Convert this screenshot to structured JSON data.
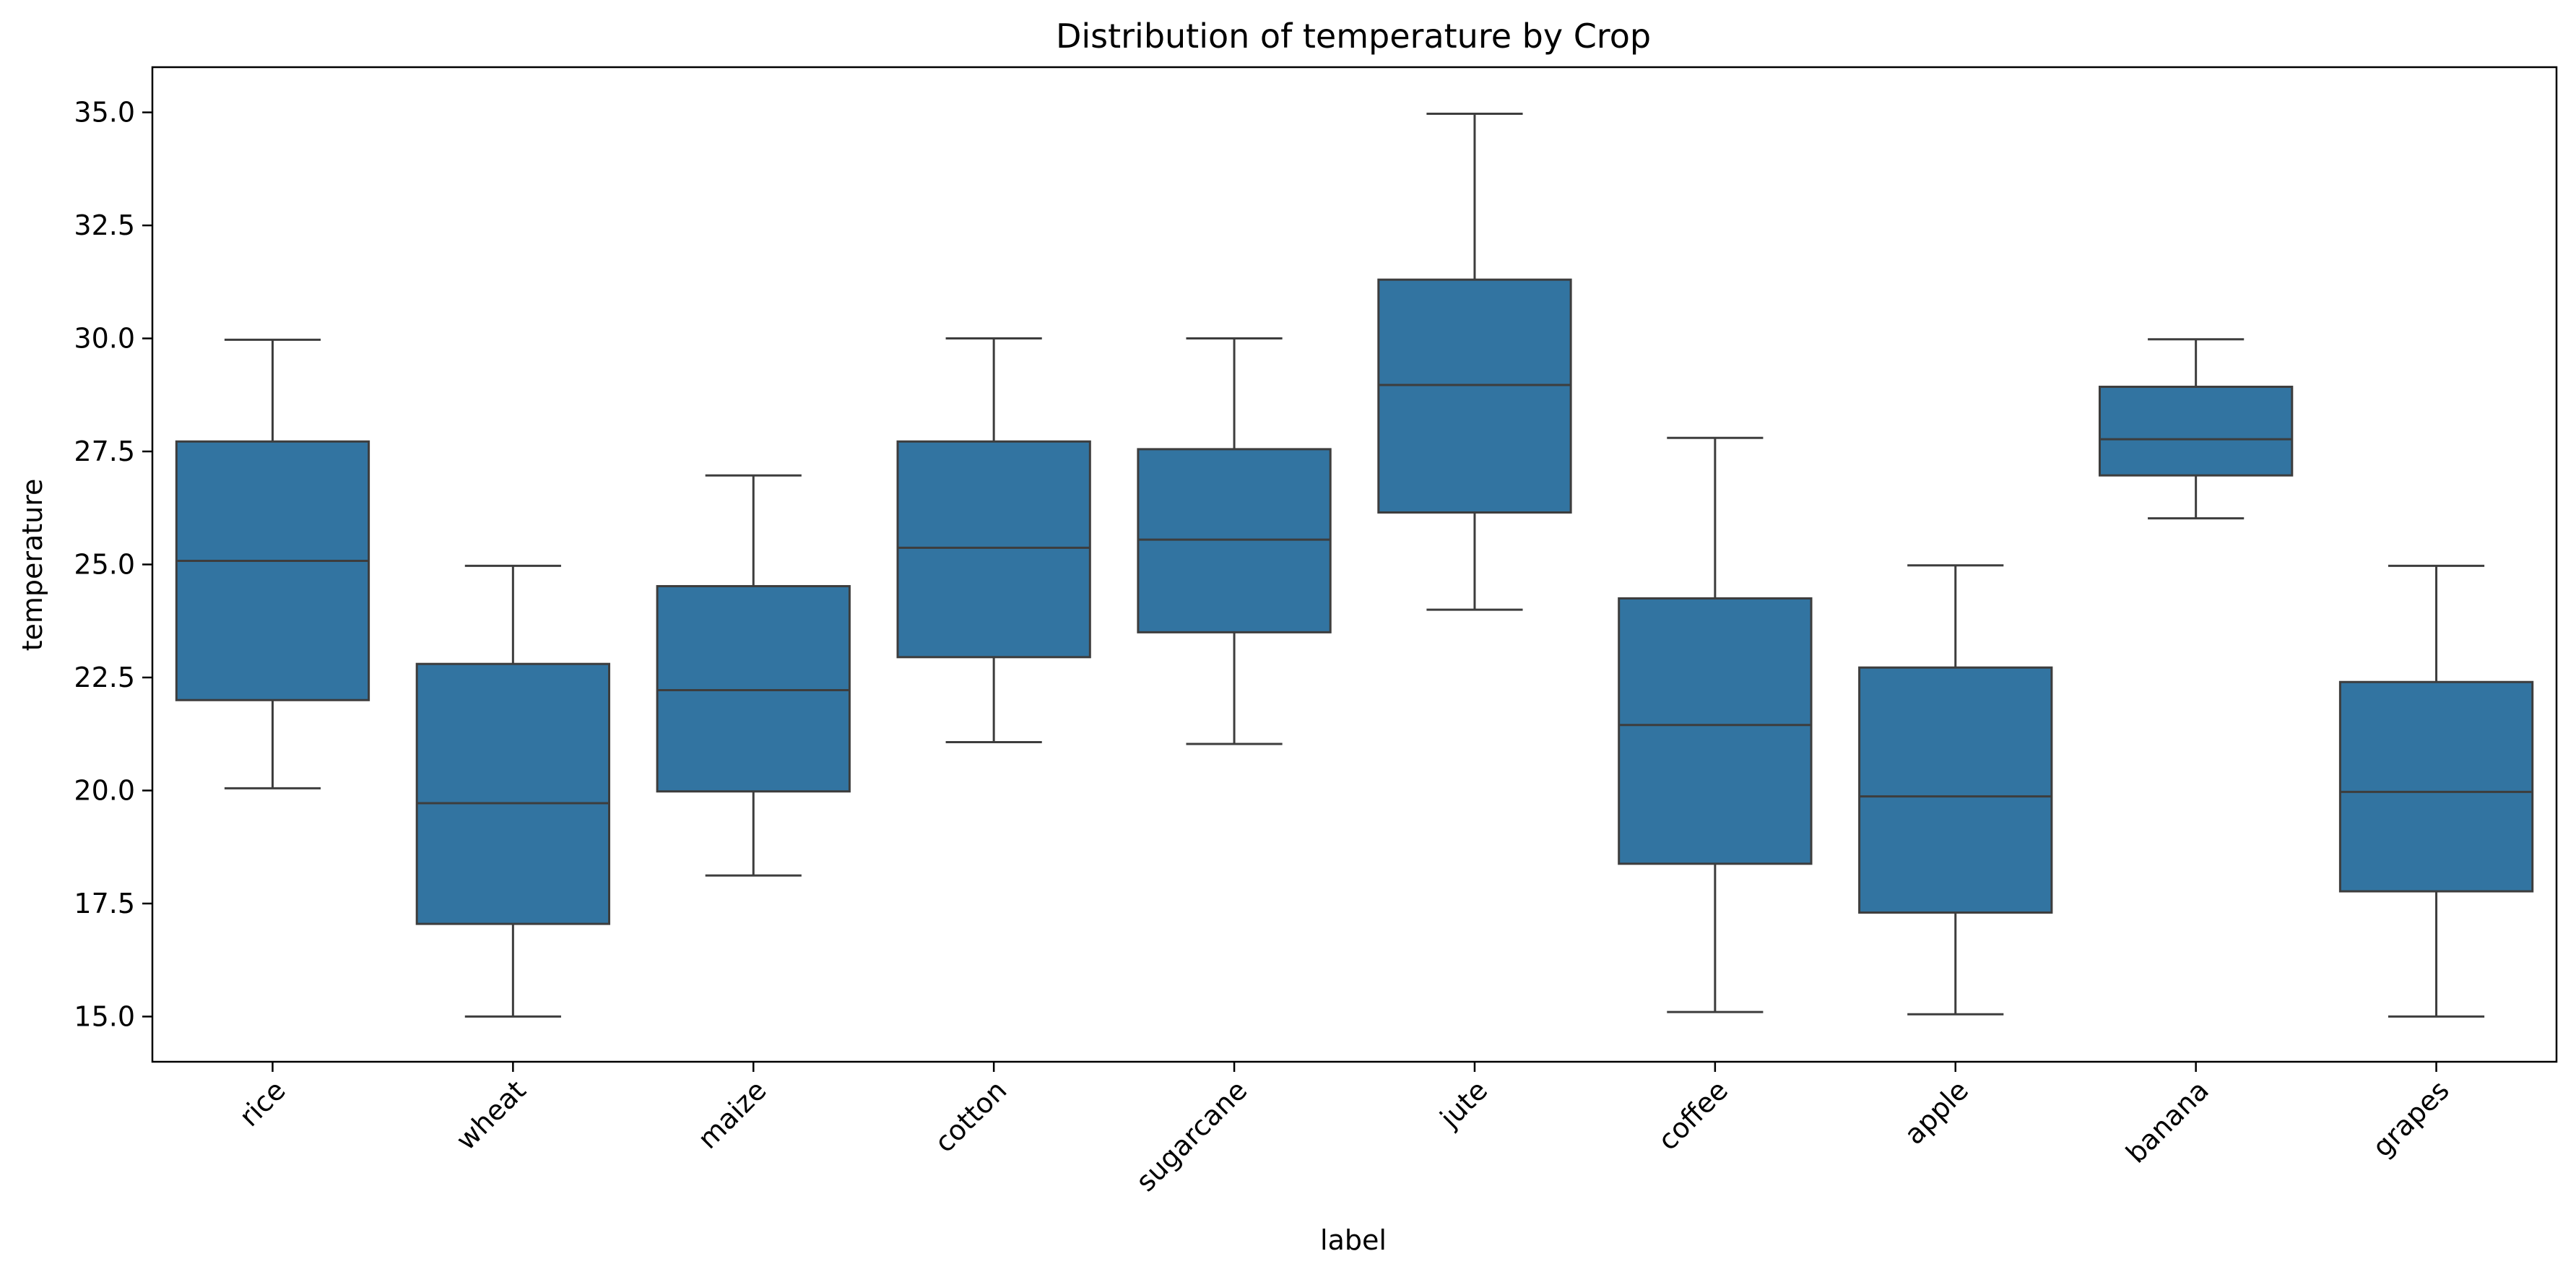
{
  "chart_data": {
    "type": "boxplot",
    "title": "Distribution of temperature by Crop",
    "xlabel": "label",
    "ylabel": "temperature",
    "ylim": [
      14.0,
      36.0
    ],
    "yticks": [
      15.0,
      17.5,
      20.0,
      22.5,
      25.0,
      27.5,
      30.0,
      32.5,
      35.0
    ],
    "ytick_labels": [
      "15.0",
      "17.5",
      "20.0",
      "22.5",
      "25.0",
      "27.5",
      "30.0",
      "32.5",
      "35.0"
    ],
    "xtick_rotation_deg": 45,
    "grid": false,
    "box_color": "#3274a1",
    "line_color": "#3d3d3d",
    "categories": [
      "rice",
      "wheat",
      "maize",
      "cotton",
      "sugarcane",
      "jute",
      "coffee",
      "apple",
      "banana",
      "grapes"
    ],
    "boxes": [
      {
        "label": "rice",
        "whisker_low": 20.05,
        "q1": 22.0,
        "median": 25.08,
        "q3": 27.72,
        "whisker_high": 29.97
      },
      {
        "label": "wheat",
        "whisker_low": 15.0,
        "q1": 17.05,
        "median": 19.72,
        "q3": 22.8,
        "whisker_high": 24.97
      },
      {
        "label": "maize",
        "whisker_low": 18.12,
        "q1": 19.98,
        "median": 22.22,
        "q3": 24.52,
        "whisker_high": 26.97
      },
      {
        "label": "cotton",
        "whisker_low": 21.07,
        "q1": 22.95,
        "median": 25.37,
        "q3": 27.72,
        "whisker_high": 30.0
      },
      {
        "label": "sugarcane",
        "whisker_low": 21.03,
        "q1": 23.5,
        "median": 25.55,
        "q3": 27.55,
        "whisker_high": 30.0
      },
      {
        "label": "jute",
        "whisker_low": 24.0,
        "q1": 26.15,
        "median": 28.97,
        "q3": 31.3,
        "whisker_high": 34.97
      },
      {
        "label": "coffee",
        "whisker_low": 15.1,
        "q1": 18.38,
        "median": 21.45,
        "q3": 24.25,
        "whisker_high": 27.8
      },
      {
        "label": "apple",
        "whisker_low": 15.05,
        "q1": 17.3,
        "median": 19.87,
        "q3": 22.72,
        "whisker_high": 24.98
      },
      {
        "label": "banana",
        "whisker_low": 26.02,
        "q1": 26.97,
        "median": 27.77,
        "q3": 28.93,
        "whisker_high": 29.98
      },
      {
        "label": "grapes",
        "whisker_low": 15.0,
        "q1": 17.77,
        "median": 19.97,
        "q3": 22.4,
        "whisker_high": 24.97
      }
    ]
  }
}
